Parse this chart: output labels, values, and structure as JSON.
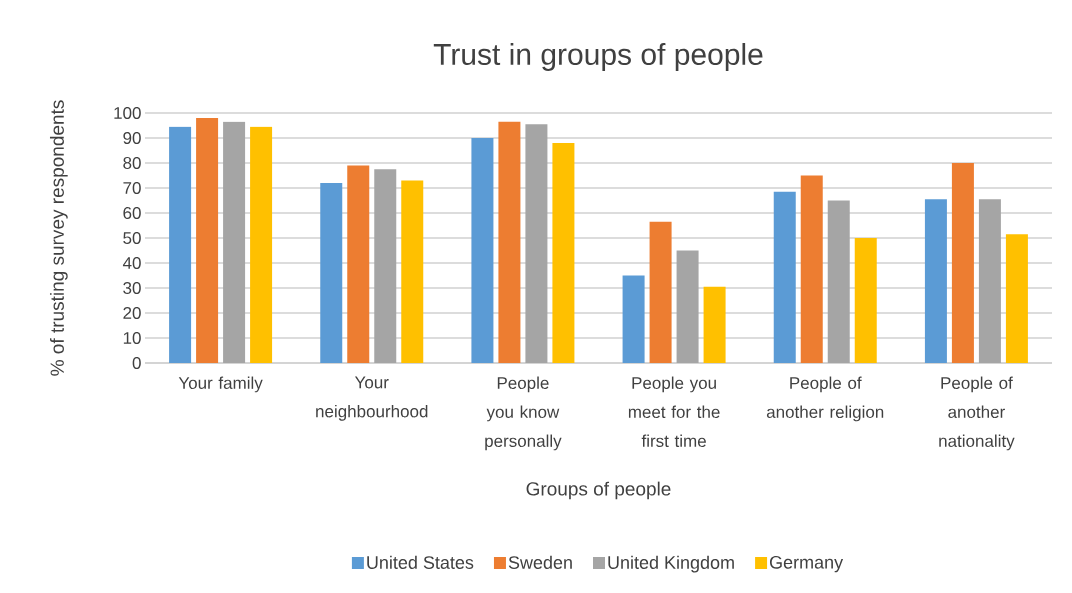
{
  "chart_data": {
    "type": "bar",
    "title": "Trust in groups of people",
    "xlabel": "Groups of people",
    "ylabel": "% of trusting survey respondents",
    "categories": [
      "Your family",
      "Your neighbourhood",
      "People you know personally",
      "People you meet for the first time",
      "People of another religion",
      "People of another nationality"
    ],
    "series": [
      {
        "name": "United States",
        "color": "#5b9bd5",
        "values": [
          94.5,
          72,
          90,
          35,
          68.5,
          65.5
        ]
      },
      {
        "name": "Sweden",
        "color": "#ed7d31",
        "values": [
          98,
          79,
          96.5,
          56.5,
          75,
          80
        ]
      },
      {
        "name": "United Kingdom",
        "color": "#a5a5a5",
        "values": [
          96.5,
          77.5,
          95.5,
          45,
          65,
          65.5
        ]
      },
      {
        "name": "Germany",
        "color": "#ffc000",
        "values": [
          94.5,
          73,
          88,
          30.5,
          50,
          51.5
        ]
      }
    ],
    "ylim": [
      0,
      100
    ],
    "yticks": [
      0,
      10,
      20,
      30,
      40,
      50,
      60,
      70,
      80,
      90,
      100
    ],
    "grid": "y",
    "legend": "bottom"
  }
}
